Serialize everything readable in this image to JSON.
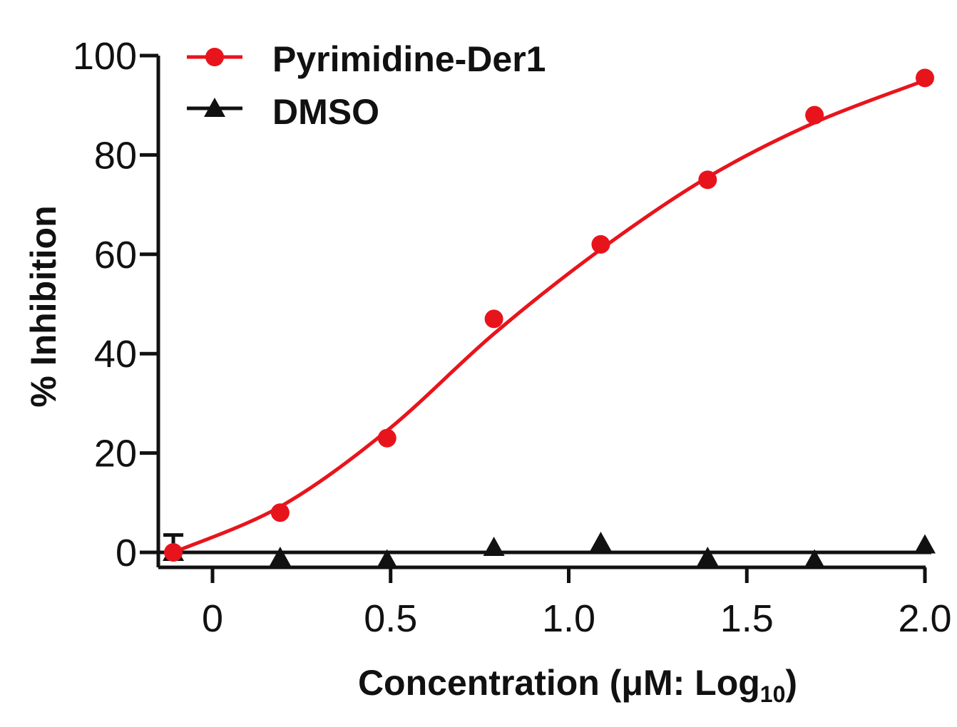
{
  "chart_data": {
    "type": "scatter",
    "title": "",
    "xlabel": "Concentration (μM: Log",
    "xlabel_sub": "10",
    "xlabel_close": ")",
    "ylabel": "% Inhibition",
    "xlim": [
      -0.15,
      2.0
    ],
    "ylim": [
      -3,
      100
    ],
    "x_ticks": [
      0,
      0.5,
      1.0,
      1.5,
      2.0
    ],
    "x_tick_labels": [
      "0",
      "0.5",
      "1.0",
      "1.5",
      "2.0"
    ],
    "y_ticks": [
      0,
      20,
      40,
      60,
      80,
      100
    ],
    "y_tick_labels": [
      "0",
      "20",
      "40",
      "60",
      "80",
      "100"
    ],
    "grid": false,
    "legend_position": "top-left",
    "series": [
      {
        "name": "Pyrimidine-Der1",
        "marker": "circle",
        "color": "#e8141c",
        "fit_curve": true,
        "x": [
          -0.11,
          0.19,
          0.49,
          0.79,
          1.09,
          1.39,
          1.69,
          2.0
        ],
        "y": [
          0,
          8,
          23,
          47,
          62,
          75,
          88,
          95.5
        ],
        "error_first": 3.5
      },
      {
        "name": "DMSO",
        "marker": "triangle",
        "color": "#111111",
        "fit_curve": false,
        "x": [
          -0.11,
          0.19,
          0.49,
          0.79,
          1.09,
          1.39,
          1.69,
          2.0
        ],
        "y": [
          0,
          -1,
          -1.5,
          1,
          2,
          -1,
          -1.5,
          1.5
        ],
        "baseline": 0
      }
    ]
  }
}
